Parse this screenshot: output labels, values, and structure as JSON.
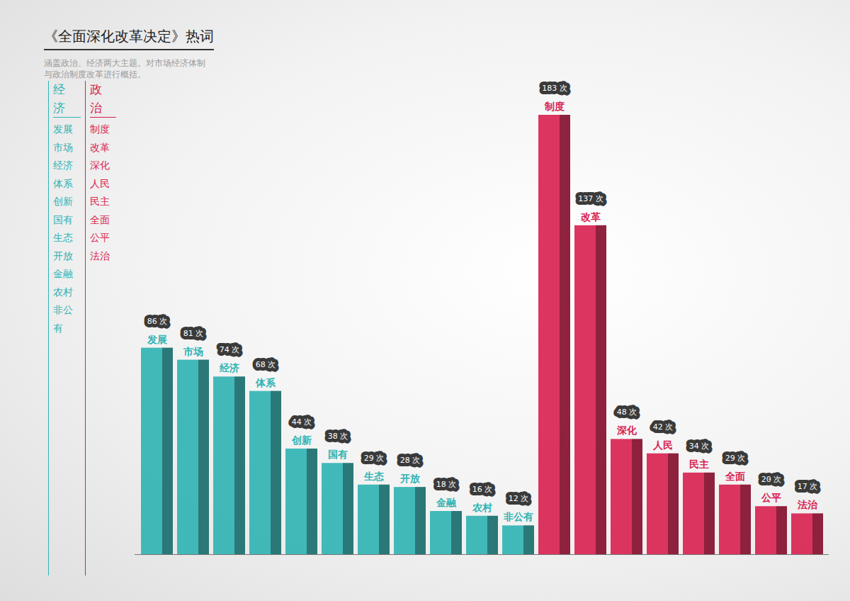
{
  "chart_data": {
    "type": "bar",
    "title": "《全面深化改革决定》热词",
    "subtitle": "涵盖政治、经济两大主题。对市场经济体制与政治制度改革进行概括。",
    "tick_labels": false,
    "data_labels": true,
    "series": [
      {
        "name": "经济",
        "color": "#2fb3b3",
        "categories": [
          "发展",
          "市场",
          "经济",
          "体系",
          "创新",
          "国有",
          "生态",
          "开放",
          "金融",
          "农村",
          "非公有"
        ],
        "values": [
          86,
          81,
          74,
          68,
          44,
          38,
          29,
          28,
          18,
          16,
          12
        ],
        "value_labels": [
          "86 次",
          "81 次",
          "74 次",
          "68 次",
          "44 次",
          "38 次",
          "29 次",
          "28 次",
          "18 次",
          "16 次",
          "12 次"
        ]
      },
      {
        "name": "政治",
        "color": "#d81f4f",
        "categories": [
          "制度",
          "改革",
          "深化",
          "人民",
          "民主",
          "全面",
          "公平",
          "法治"
        ],
        "values": [
          183,
          137,
          48,
          42,
          34,
          29,
          20,
          17
        ],
        "value_labels": [
          "183 次",
          "137 次",
          "48 次",
          "42 次",
          "34 次",
          "29 次",
          "20 次",
          "17 次"
        ]
      }
    ]
  }
}
